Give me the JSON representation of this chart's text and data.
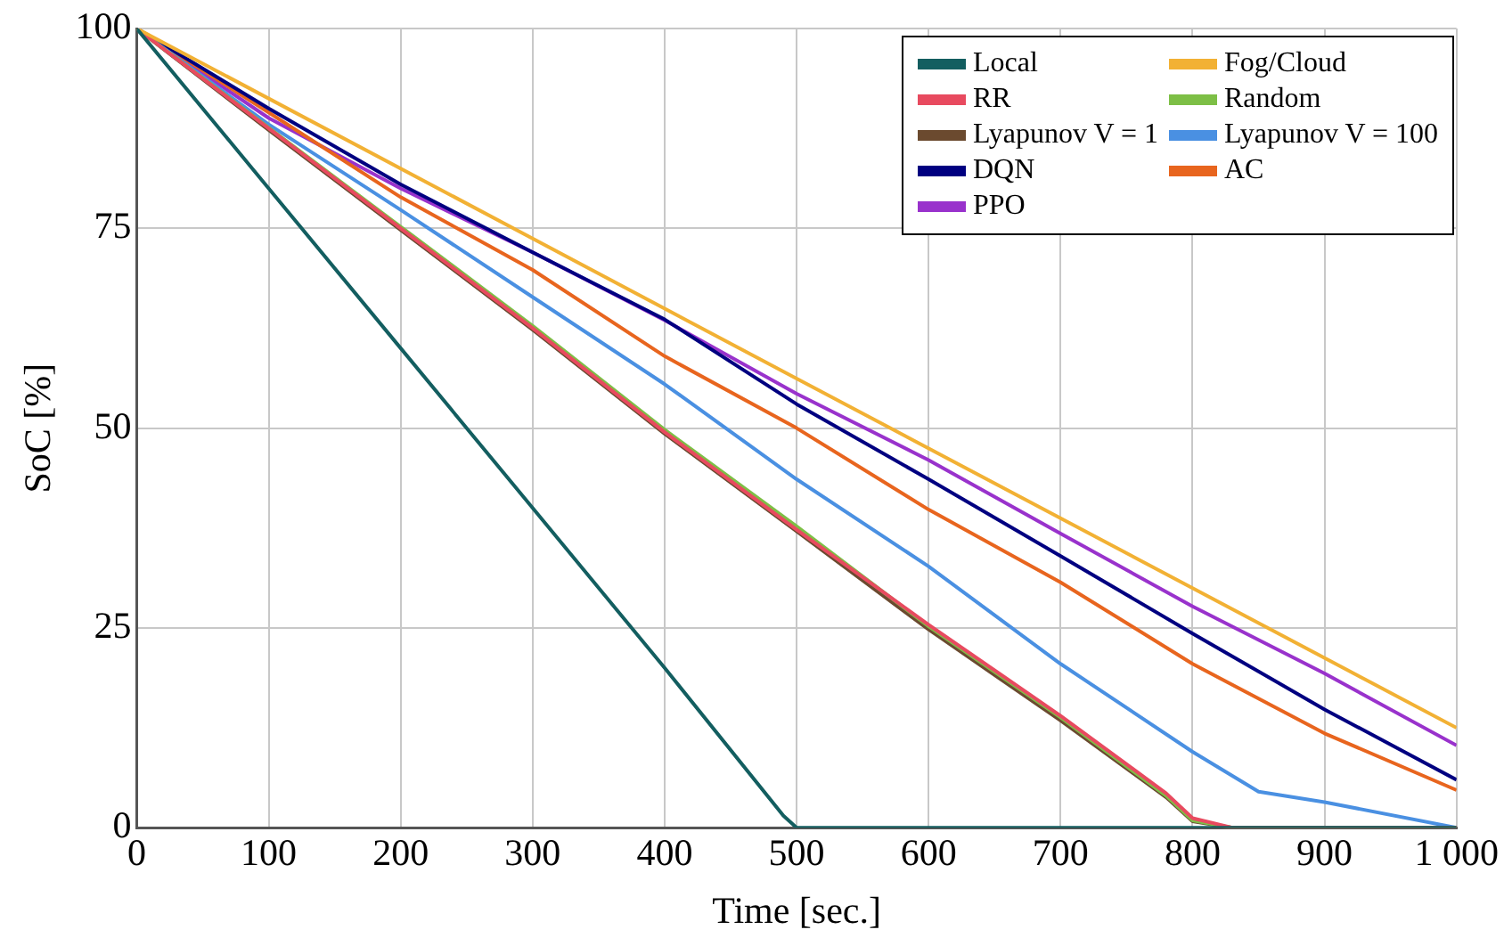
{
  "chart_data": {
    "type": "line",
    "xlabel": "Time [sec.]",
    "ylabel": "SoC [%]",
    "xlim": [
      0,
      1000
    ],
    "ylim": [
      0,
      100
    ],
    "xticks": [
      0,
      100,
      200,
      300,
      400,
      500,
      600,
      700,
      800,
      900,
      {
        "value": 1000,
        "label": "1 000"
      }
    ],
    "yticks": [
      0,
      25,
      50,
      75,
      100
    ],
    "grid": true,
    "legend": "top right",
    "marker": "none",
    "line_style": "solid",
    "series": [
      {
        "name": "Local",
        "color": "#135e60",
        "x": [
          0,
          100,
          200,
          300,
          400,
          490,
          500,
          1000
        ],
        "values": [
          100,
          80,
          60,
          40,
          20,
          1.5,
          0,
          0
        ]
      },
      {
        "name": "Fog/Cloud",
        "color": "#f2b134",
        "x": [
          0,
          500,
          1000
        ],
        "values": [
          100,
          56.2,
          12.5
        ]
      },
      {
        "name": "RR",
        "color": "#e84a5f",
        "x": [
          0,
          100,
          200,
          300,
          400,
          500,
          600,
          700,
          780,
          800,
          830,
          1000
        ],
        "values": [
          100,
          87.5,
          75,
          62.5,
          49.5,
          37.3,
          25.4,
          14,
          4.3,
          1.2,
          0,
          0
        ]
      },
      {
        "name": "Random",
        "color": "#7dbf46",
        "x": [
          0,
          100,
          200,
          300,
          400,
          500,
          600,
          700,
          780,
          800,
          830,
          1000
        ],
        "values": [
          100,
          87.6,
          75.2,
          62.8,
          49.8,
          37.7,
          25.2,
          13.8,
          4,
          0.9,
          0,
          0
        ]
      },
      {
        "name": "Lyapunov V = 1",
        "color": "#6b4a2f",
        "x": [
          0,
          100,
          200,
          300,
          400,
          500,
          600,
          700,
          780,
          800,
          830,
          1000
        ],
        "values": [
          100,
          87.3,
          74.8,
          62.3,
          49.3,
          37.1,
          24.8,
          13.4,
          3.8,
          0.8,
          0,
          0
        ]
      },
      {
        "name": "Lyapunov V = 100",
        "color": "#4a90e2",
        "x": [
          0,
          100,
          200,
          300,
          400,
          500,
          600,
          700,
          800,
          850,
          900,
          1000
        ],
        "values": [
          100,
          88,
          77.3,
          66.4,
          55.5,
          43.6,
          32.7,
          20.5,
          9.5,
          4.5,
          3.2,
          0
        ]
      },
      {
        "name": "DQN",
        "color": "#000080",
        "x": [
          0,
          100,
          200,
          300,
          400,
          500,
          600,
          700,
          800,
          900,
          1000
        ],
        "values": [
          100,
          90,
          80.5,
          72,
          63.6,
          53,
          43.6,
          34,
          24.3,
          14.8,
          6
        ]
      },
      {
        "name": "AC",
        "color": "#e8651e",
        "x": [
          0,
          100,
          200,
          300,
          400,
          500,
          600,
          700,
          800,
          900,
          1000
        ],
        "values": [
          100,
          89.5,
          78.9,
          69.8,
          59,
          50,
          39.8,
          30.7,
          20.5,
          11.8,
          4.7
        ]
      },
      {
        "name": "PPO",
        "color": "#9932cc",
        "x": [
          0,
          100,
          200,
          300,
          400,
          500,
          600,
          700,
          800,
          900,
          1000
        ],
        "values": [
          100,
          88.8,
          80,
          72,
          63.5,
          54.3,
          46,
          36.8,
          27.7,
          19.3,
          10.3
        ]
      }
    ]
  }
}
